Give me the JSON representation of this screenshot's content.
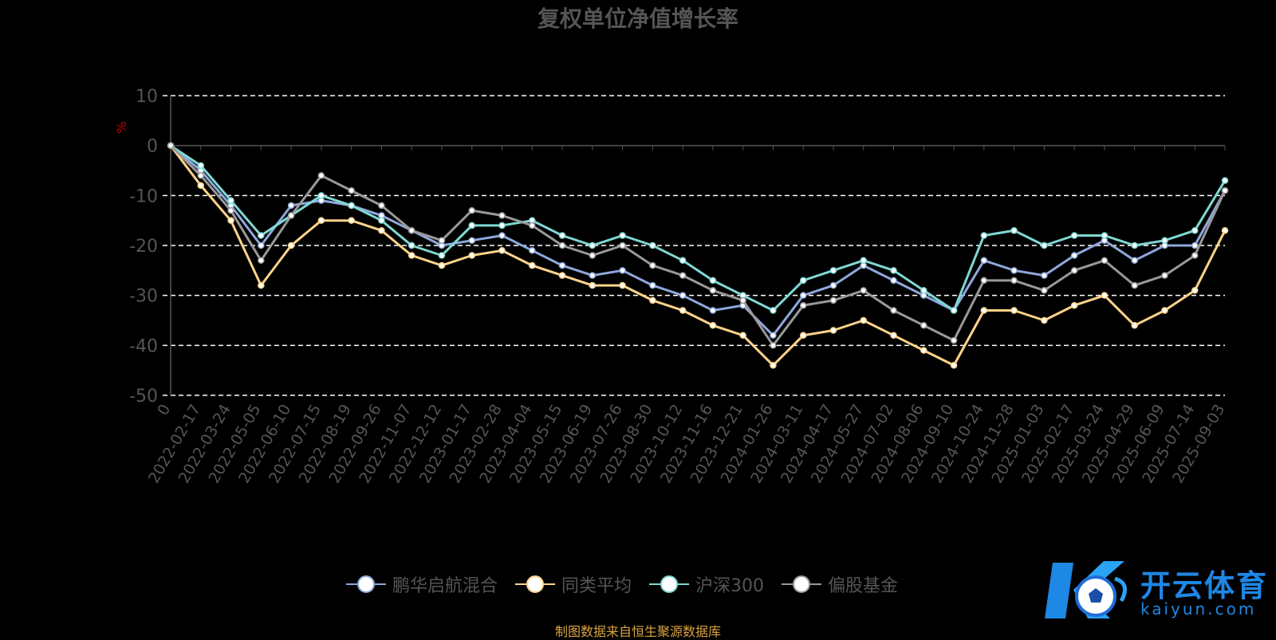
{
  "title": "复权单位净值增长率",
  "footer": "制图数据来自恒生聚源数据库",
  "logo": {
    "main": "开云体育",
    "sub": "kaiyun.com"
  },
  "colors": {
    "background": "#000000",
    "grid": "#ffffff",
    "axis": "#555555",
    "ylabel": "#cc0000",
    "footer": "#d9a441",
    "logo": "#1e88e5"
  },
  "chart_data": {
    "type": "line",
    "title": "复权单位净值增长率",
    "ylabel": "%",
    "ylim": [
      -50,
      10
    ],
    "yticks": [
      10,
      0,
      -10,
      -20,
      -30,
      -40,
      -50
    ],
    "grid": true,
    "legend_position": "bottom",
    "x_tick_labels": [
      "0",
      "2022-02-17",
      "2022-03-24",
      "2022-05-05",
      "2022-06-10",
      "2022-07-15",
      "2022-08-19",
      "2022-09-26",
      "2022-11-07",
      "2022-12-12",
      "2023-01-17",
      "2023-02-28",
      "2023-04-04",
      "2023-05-15",
      "2023-06-19",
      "2023-07-26",
      "2023-08-30",
      "2023-10-12",
      "2023-11-16",
      "2023-12-21",
      "2024-01-26",
      "2024-03-11",
      "2024-04-17",
      "2024-05-27",
      "2024-07-02",
      "2024-08-06",
      "2024-09-10",
      "2024-10-24",
      "2024-11-28",
      "2025-01-03",
      "2025-02-17",
      "2025-03-24",
      "2025-04-29",
      "2025-06-09",
      "2025-07-14",
      "2025-09-03"
    ],
    "series": [
      {
        "name": "鹏华启航混合",
        "color": "#8fa8dc",
        "values": [
          0,
          -5,
          -12,
          -20,
          -12,
          -11,
          -12,
          -14,
          -17,
          -20,
          -19,
          -18,
          -21,
          -24,
          -26,
          -25,
          -28,
          -30,
          -33,
          -32,
          -38,
          -30,
          -28,
          -24,
          -27,
          -30,
          -33,
          -23,
          -25,
          -26,
          -22,
          -19,
          -23,
          -20,
          -20,
          -9
        ]
      },
      {
        "name": "同类平均",
        "color": "#ffd38a",
        "values": [
          0,
          -8,
          -15,
          -28,
          -20,
          -15,
          -15,
          -17,
          -22,
          -24,
          -22,
          -21,
          -24,
          -26,
          -28,
          -28,
          -31,
          -33,
          -36,
          -38,
          -44,
          -38,
          -37,
          -35,
          -38,
          -41,
          -44,
          -33,
          -33,
          -35,
          -32,
          -30,
          -36,
          -33,
          -29,
          -17
        ]
      },
      {
        "name": "沪深300",
        "color": "#7fd8d4",
        "values": [
          0,
          -4,
          -11,
          -18,
          -14,
          -10,
          -12,
          -15,
          -20,
          -22,
          -16,
          -16,
          -15,
          -18,
          -20,
          -18,
          -20,
          -23,
          -27,
          -30,
          -33,
          -27,
          -25,
          -23,
          -25,
          -29,
          -33,
          -18,
          -17,
          -20,
          -18,
          -18,
          -20,
          -19,
          -17,
          -7
        ]
      },
      {
        "name": "偏股基金",
        "color": "#999999",
        "values": [
          0,
          -6,
          -13,
          -23,
          -14,
          -6,
          -9,
          -12,
          -17,
          -19,
          -13,
          -14,
          -16,
          -20,
          -22,
          -20,
          -24,
          -26,
          -29,
          -31,
          -40,
          -32,
          -31,
          -29,
          -33,
          -36,
          -39,
          -27,
          -27,
          -29,
          -25,
          -23,
          -28,
          -26,
          -22,
          -9
        ]
      }
    ]
  }
}
